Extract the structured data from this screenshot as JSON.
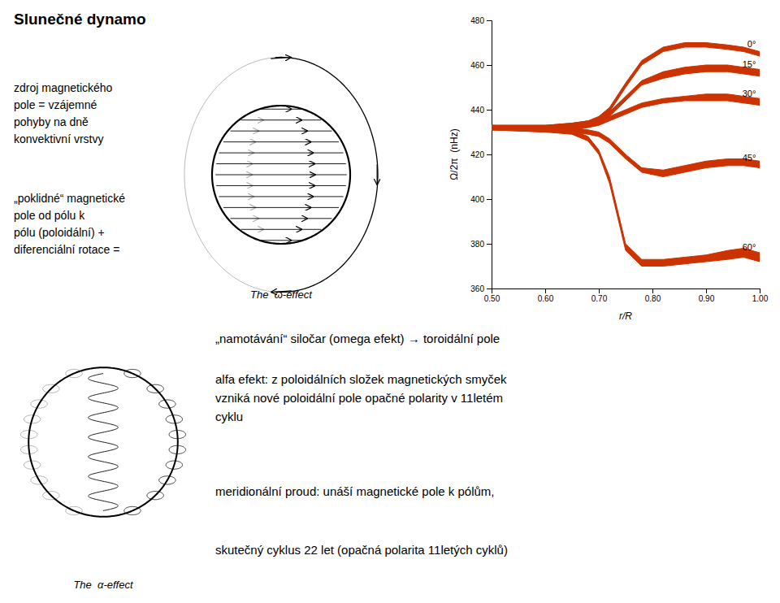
{
  "chart_data": {
    "type": "area",
    "title": "Slunečné dynamo",
    "texts": [
      "zdroj magnetického\npole = vzájemné\npohyby na dně\nkonvektivní vrstvy",
      "„poklidné“ magnetické\npole od pólu k\npólu (poloidální) +\ndiferenciální rotace =",
      "„namotávání“ siločar (omega efekt) → toroidální pole",
      "alfa efekt: z poloidálních složek magnetických smyček\nvzniká nové poloidální pole opačné polarity v 11letém\ncyklu",
      "meridionální proud: unáší magnetické pole k pólům,",
      "skutečný cyklus 22 let (opačná polarita 11letých cyklů)"
    ],
    "diagram_labels": [
      "The  ω-effect",
      "The  α-effect"
    ],
    "xlabel": "r/R",
    "ylabel": "Ω/2π  (nHz)",
    "xlim": [
      0.5,
      1.0
    ],
    "ylim": [
      360,
      480
    ],
    "xticks": [
      {
        "value": 0.5,
        "label": "0.50"
      },
      {
        "value": 0.6,
        "label": "0.60"
      },
      {
        "value": 0.7,
        "label": "0.70"
      },
      {
        "value": 0.8,
        "label": "0.80"
      },
      {
        "value": 0.9,
        "label": "0.90"
      },
      {
        "value": 1.0,
        "label": "1.00"
      }
    ],
    "yticks": [
      360,
      380,
      400,
      420,
      440,
      460,
      480
    ],
    "color": "#cc3300",
    "x": [
      0.5,
      0.6,
      0.65,
      0.68,
      0.7,
      0.72,
      0.75,
      0.78,
      0.82,
      0.86,
      0.9,
      0.94,
      0.97,
      1.0
    ],
    "series": [
      {
        "values": [
          433,
          433,
          434,
          435,
          437,
          441,
          452,
          462,
          468,
          470,
          470,
          469,
          468,
          466
        ],
        "values_b": [
          431,
          431,
          432,
          433,
          435,
          439,
          450,
          460,
          466,
          468,
          468,
          467,
          466,
          464
        ]
      },
      {
        "values": [
          433,
          433,
          434,
          435,
          436,
          439,
          446,
          453,
          457,
          459,
          460,
          460,
          459,
          458
        ],
        "values_b": [
          431,
          431,
          432,
          433,
          434,
          437,
          444,
          451,
          454,
          456,
          457,
          457,
          456,
          455
        ]
      },
      {
        "values": [
          433,
          433,
          433,
          434,
          435,
          437,
          440,
          443,
          445,
          446,
          447,
          447,
          446,
          445
        ],
        "values_b": [
          431,
          431,
          431,
          432,
          433,
          435,
          438,
          441,
          443,
          444,
          444,
          444,
          443,
          442
        ]
      },
      {
        "values": [
          433,
          432,
          432,
          431,
          430,
          427,
          420,
          414,
          413,
          415,
          417,
          418,
          418,
          417
        ],
        "values_b": [
          431,
          430,
          430,
          429,
          428,
          425,
          418,
          412,
          410,
          412,
          414,
          415,
          415,
          414
        ]
      },
      {
        "values": [
          433,
          432,
          431,
          428,
          422,
          410,
          380,
          373,
          373,
          374,
          375,
          377,
          378,
          376
        ],
        "values_b": [
          431,
          430,
          429,
          426,
          420,
          407,
          377,
          370,
          370,
          371,
          372,
          373,
          374,
          372
        ]
      }
    ],
    "annotations": [
      {
        "text": "0°",
        "x": 0.993,
        "y": 469
      },
      {
        "text": "15°",
        "x": 0.993,
        "y": 460
      },
      {
        "text": "30°",
        "x": 0.993,
        "y": 447
      },
      {
        "text": "45°",
        "x": 0.993,
        "y": 418
      },
      {
        "text": "60°",
        "x": 0.993,
        "y": 378
      }
    ]
  }
}
